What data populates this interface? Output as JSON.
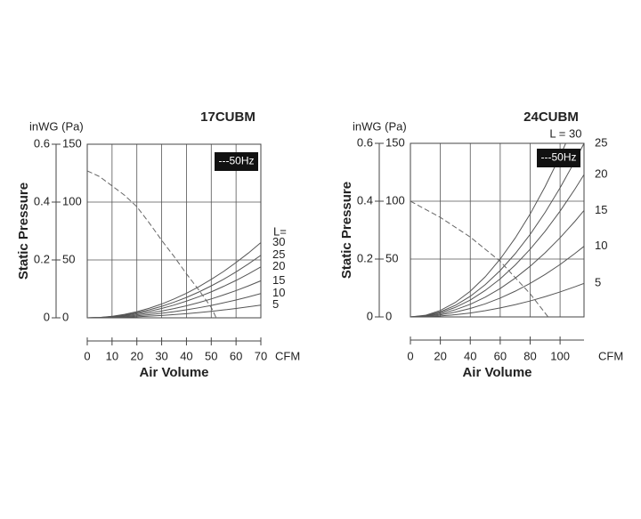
{
  "chart_data": [
    {
      "type": "line",
      "title": "17CUBM",
      "ylabel": "Static Pressure",
      "yunits": "inWG (Pa)",
      "xlabel": "Air Volume",
      "xunits": "CFM",
      "legend_title": "L=",
      "x": [
        0,
        5,
        10,
        15,
        20,
        25,
        30,
        35,
        40,
        45,
        50,
        55,
        60,
        65,
        70
      ],
      "xlim": [
        0,
        70
      ],
      "xticks": [
        0,
        10,
        20,
        30,
        40,
        50,
        60,
        70
      ],
      "ylim": [
        0,
        150
      ],
      "yticks": [
        0,
        50,
        100,
        150
      ],
      "y2lim": [
        0,
        0.6
      ],
      "y2ticks": [
        0,
        0.2,
        0.4,
        0.6
      ],
      "grid": true,
      "series": [
        {
          "name": "30",
          "color": "#555555",
          "values": [
            0,
            0.3,
            1.3,
            3,
            5.3,
            8.3,
            11.9,
            16.3,
            21.2,
            26.9,
            33.2,
            40.1,
            47.8,
            56,
            65
          ]
        },
        {
          "name": "25",
          "color": "#555555",
          "values": [
            0,
            0.3,
            1.1,
            2.5,
            4.4,
            6.9,
            9.9,
            13.5,
            17.6,
            22.3,
            27.6,
            33.3,
            39.7,
            46.6,
            54
          ]
        },
        {
          "name": "20",
          "color": "#555555",
          "values": [
            0,
            0.2,
            0.9,
            2,
            3.6,
            5.6,
            8.1,
            11,
            14.4,
            18.2,
            22.4,
            27.2,
            32.3,
            37.9,
            44
          ]
        },
        {
          "name": "15",
          "color": "#555555",
          "values": [
            0,
            0.2,
            0.7,
            1.5,
            2.6,
            4.1,
            5.9,
            8,
            10.4,
            13.2,
            16.3,
            19.8,
            23.5,
            27.6,
            32
          ]
        },
        {
          "name": "10",
          "color": "#555555",
          "values": [
            0,
            0.1,
            0.4,
            1,
            1.7,
            2.7,
            3.9,
            5.3,
            6.9,
            8.7,
            10.7,
            13,
            15.4,
            18.1,
            21
          ]
        },
        {
          "name": "5",
          "color": "#555555",
          "values": [
            0,
            0.1,
            0.2,
            0.5,
            0.9,
            1.4,
            2,
            2.8,
            3.6,
            4.5,
            5.6,
            6.8,
            8.1,
            9.5,
            11
          ]
        },
        {
          "name": "---50Hz",
          "color": "#666666",
          "line_style": "dashed",
          "x": [
            0,
            5,
            10,
            15,
            20,
            25,
            30,
            35,
            40,
            45,
            50,
            52
          ],
          "values": [
            127,
            122,
            114,
            106,
            96,
            82,
            67,
            53,
            38,
            24,
            9,
            0
          ]
        }
      ]
    },
    {
      "type": "line",
      "title": "24CUBM",
      "ylabel": "Static Pressure",
      "yunits": "inWG (Pa)",
      "xlabel": "Air Volume",
      "xunits": "CFM",
      "x": [
        0,
        10,
        20,
        30,
        40,
        50,
        60,
        70,
        80,
        90,
        100,
        110,
        116
      ],
      "xlim": [
        0,
        116
      ],
      "xticks": [
        0,
        20,
        40,
        60,
        80,
        100
      ],
      "ylim": [
        0,
        150
      ],
      "yticks": [
        0,
        50,
        100,
        150
      ],
      "y2lim": [
        0,
        0.6
      ],
      "y2ticks": [
        0,
        0.2,
        0.4,
        0.6
      ],
      "grid": true,
      "series": [
        {
          "name": "L = 30",
          "color": "#555555",
          "values": [
            0,
            1.4,
            5.6,
            12.5,
            22.2,
            34.7,
            50,
            68.1,
            88.9,
            112.6,
            139,
            168.2,
            187
          ]
        },
        {
          "name": "25",
          "color": "#555555",
          "values": [
            0,
            1.1,
            4.5,
            10,
            17.8,
            27.9,
            40.1,
            54.6,
            71.3,
            90.3,
            111.5,
            134.9,
            150
          ]
        },
        {
          "name": "20",
          "color": "#555555",
          "values": [
            0,
            0.9,
            3.7,
            8.2,
            14.6,
            22.9,
            32.9,
            44.8,
            58.5,
            74,
            91.4,
            110.6,
            123
          ]
        },
        {
          "name": "15",
          "color": "#555555",
          "values": [
            0,
            0.7,
            2.7,
            6.2,
            10.9,
            17.1,
            24.6,
            33.5,
            43.8,
            55.4,
            68.4,
            82.7,
            92
          ]
        },
        {
          "name": "10",
          "color": "#555555",
          "values": [
            0,
            0.5,
            1.8,
            4.1,
            7.3,
            11.3,
            16.3,
            22.2,
            29,
            36.7,
            45.3,
            54.9,
            61
          ]
        },
        {
          "name": "5",
          "color": "#555555",
          "values": [
            0,
            0.2,
            0.9,
            1.9,
            3.4,
            5.4,
            7.8,
            10.6,
            13.8,
            17.5,
            21.6,
            26.1,
            29
          ]
        },
        {
          "name": "---50Hz",
          "color": "#666666",
          "line_style": "dashed",
          "x": [
            0,
            20,
            40,
            60,
            80,
            92
          ],
          "values": [
            100,
            86,
            69,
            48,
            20,
            0
          ]
        }
      ]
    }
  ]
}
